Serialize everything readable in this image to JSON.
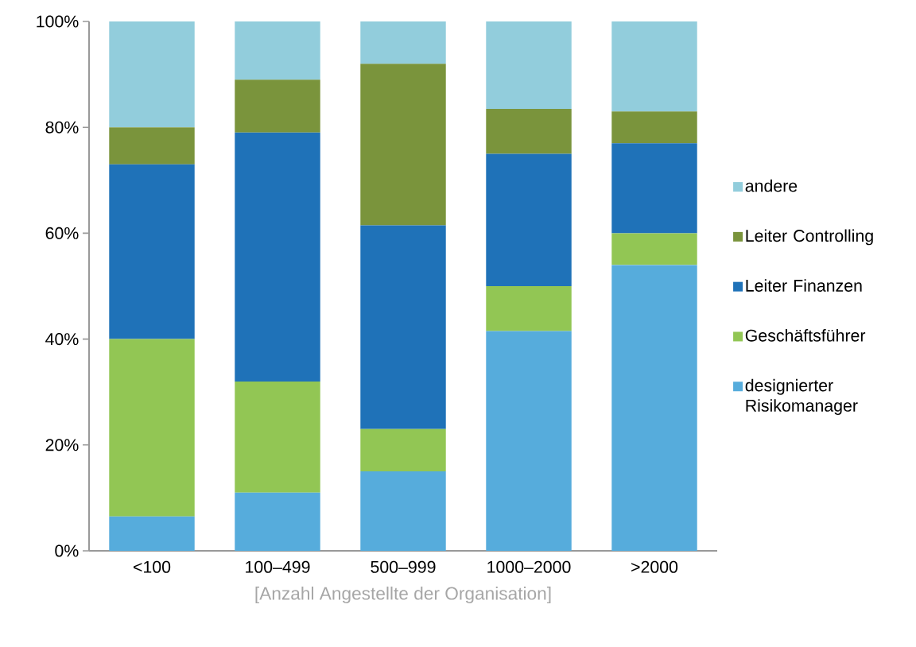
{
  "chart_data": {
    "type": "bar",
    "stacked": true,
    "legend": "right",
    "xlabel": "[Anzahl Angestellte der Organisation]",
    "categories": [
      "<100",
      "100–499",
      "500–999",
      "1000–2000",
      ">2000"
    ],
    "series": [
      {
        "name": "designierter Risikomanager",
        "color": "#56acdc",
        "values": [
          6.5,
          11,
          15,
          41.5,
          54
        ]
      },
      {
        "name": "Geschäftsführer",
        "color": "#92c654",
        "values": [
          33.5,
          21,
          8,
          8.5,
          6
        ]
      },
      {
        "name": "Leiter Finanzen",
        "color": "#1f72b8",
        "values": [
          33,
          47,
          38.5,
          25,
          17
        ]
      },
      {
        "name": "Leiter Controlling",
        "color": "#7a943c",
        "values": [
          7,
          10,
          30.5,
          8.5,
          6
        ]
      },
      {
        "name": "andere",
        "color": "#92cddc",
        "values": [
          20,
          11,
          8,
          16.5,
          17
        ]
      }
    ],
    "ylim": [
      0,
      100
    ],
    "yticks": [
      {
        "value": 0,
        "label": "0%"
      },
      {
        "value": 20,
        "label": "20%"
      },
      {
        "value": 40,
        "label": "40%"
      },
      {
        "value": 60,
        "label": "60%"
      },
      {
        "value": 80,
        "label": "80%"
      },
      {
        "value": 100,
        "label": "100%"
      }
    ]
  }
}
